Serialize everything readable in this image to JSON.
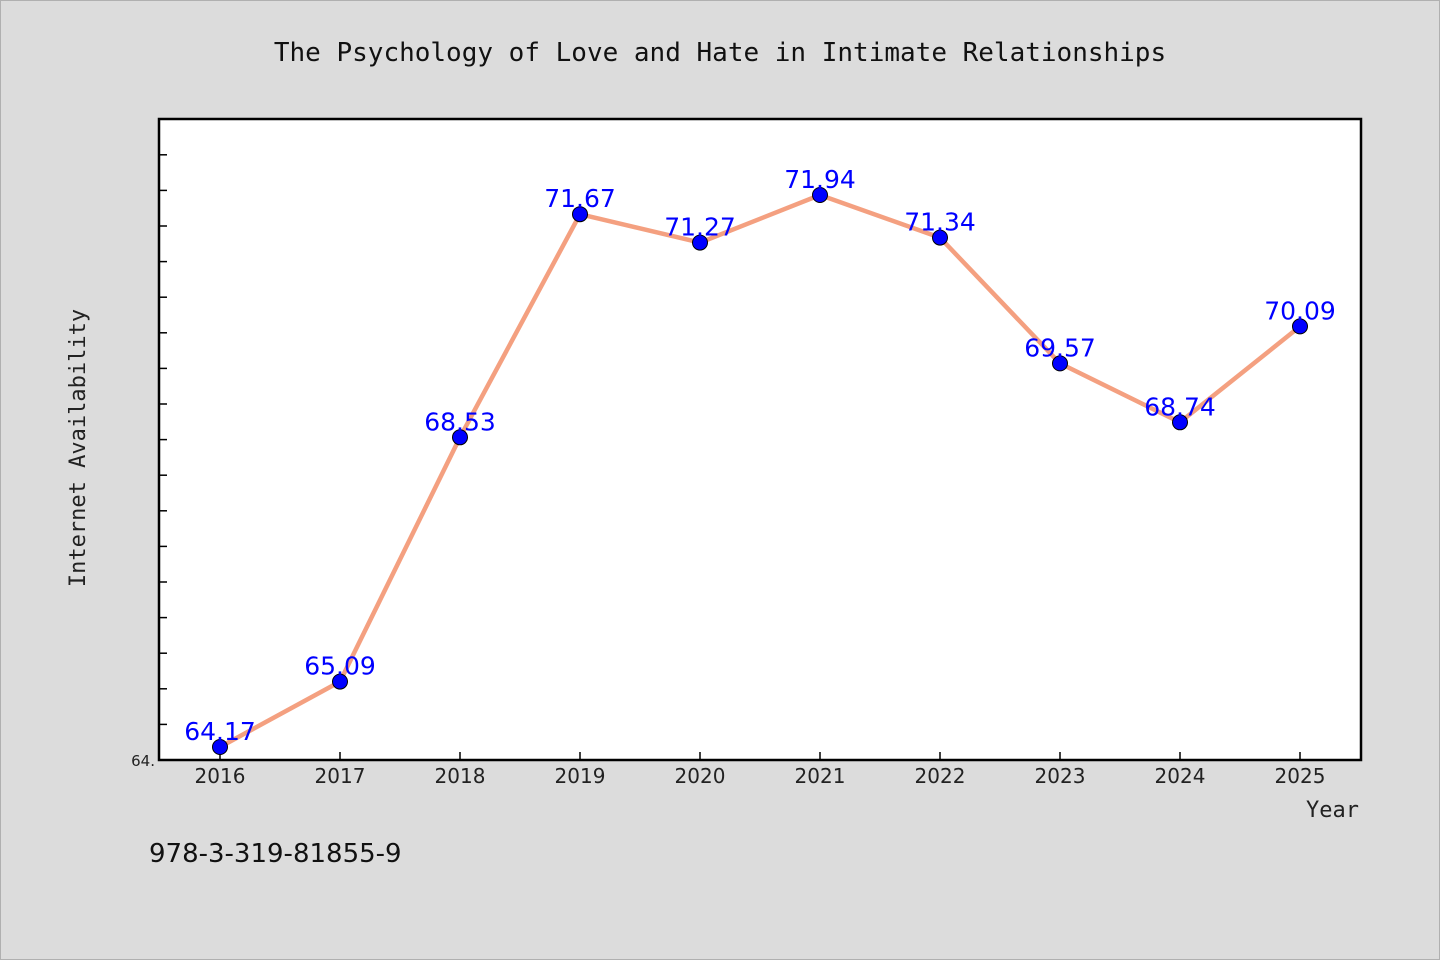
{
  "chart_data": {
    "type": "line",
    "title": "The Psychology of Love and Hate in Intimate Relationships",
    "xlabel": "Year",
    "ylabel": "Internet Availability",
    "categories": [
      "2016",
      "2017",
      "2018",
      "2019",
      "2020",
      "2021",
      "2022",
      "2023",
      "2024",
      "2025"
    ],
    "values": [
      64.17,
      65.09,
      68.53,
      71.67,
      71.27,
      71.94,
      71.34,
      69.57,
      68.74,
      70.09
    ],
    "data_labels": [
      "64.17",
      "65.09",
      "68.53",
      "71.67",
      "71.27",
      "71.94",
      "71.34",
      "69.57",
      "68.74",
      "70.09"
    ],
    "ylim": [
      64.0,
      73.0
    ],
    "y_min_label": "64.",
    "grid": false,
    "legend": "none",
    "colors": {
      "line": "#f4a080",
      "marker": "#0000ff",
      "label": "#0000ff",
      "plot_background": "#ffffff",
      "page_background": "#dcdcdc"
    }
  },
  "footer": {
    "isbn": "978-3-319-81855-9"
  }
}
